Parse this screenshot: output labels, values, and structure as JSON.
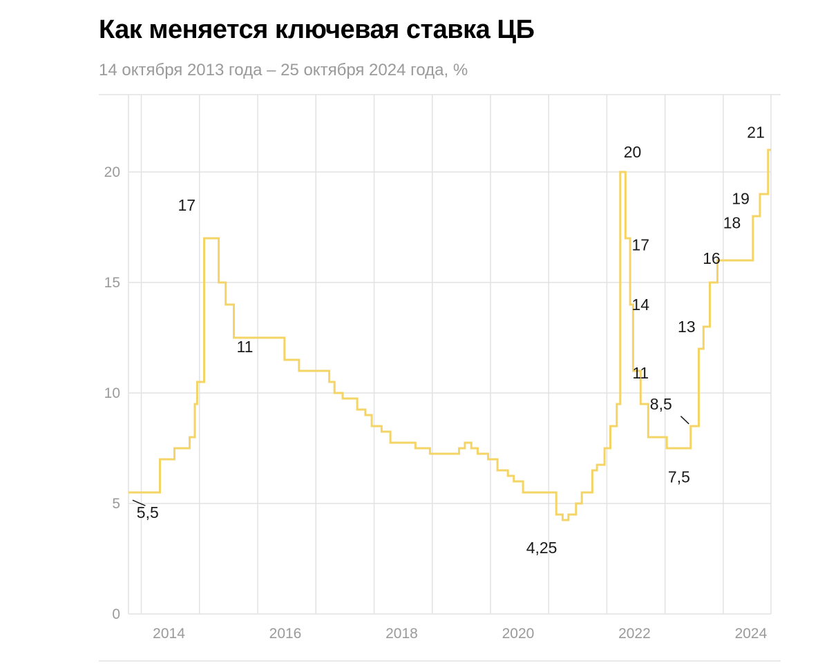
{
  "title": "Как меняется ключевая ставка ЦБ",
  "subtitle": "14 октября 2013 года – 25 октября 2024 года, %",
  "colors": {
    "line": "#F5D466",
    "grid": "#e2e2e2",
    "tick": "#9a9a9a",
    "annotation": "#1a1a1a"
  },
  "chart_data": {
    "type": "line",
    "step": true,
    "title": "Как меняется ключевая ставка ЦБ",
    "subtitle": "14 октября 2013 года – 25 октября 2024 года, %",
    "xlabel": "",
    "ylabel": "",
    "xlim": [
      2013.78,
      2024.82
    ],
    "ylim": [
      0,
      23.5
    ],
    "grid": true,
    "x_ticks": [
      2014,
      2016,
      2018,
      2020,
      2022,
      2024
    ],
    "x_tick_labels": [
      "2014",
      "2016",
      "2018",
      "2020",
      "2022",
      "2024"
    ],
    "y_ticks": [
      0,
      5,
      10,
      15,
      20
    ],
    "y_tick_labels": [
      "0",
      "5",
      "10",
      "15",
      "20"
    ],
    "series": [
      {
        "name": "Ключевая ставка ЦБ",
        "x": [
          2013.78,
          2014.17,
          2014.32,
          2014.57,
          2014.83,
          2014.92,
          2014.96,
          2015.08,
          2015.33,
          2015.45,
          2015.59,
          2016.46,
          2016.71,
          2017.23,
          2017.32,
          2017.46,
          2017.71,
          2017.85,
          2017.96,
          2018.13,
          2018.28,
          2018.71,
          2018.96,
          2019.46,
          2019.56,
          2019.67,
          2019.78,
          2019.96,
          2020.12,
          2020.3,
          2020.4,
          2020.56,
          2021.13,
          2021.24,
          2021.34,
          2021.47,
          2021.57,
          2021.75,
          2021.83,
          2021.96,
          2022.06,
          2022.17,
          2022.23,
          2022.32,
          2022.4,
          2022.45,
          2022.58,
          2022.71,
          2023.03,
          2023.44,
          2023.58,
          2023.66,
          2023.77,
          2023.9,
          2024.51,
          2024.63,
          2024.77,
          2024.82
        ],
        "values": [
          5.5,
          5.5,
          7.0,
          7.5,
          8.0,
          9.5,
          10.5,
          17.0,
          15.0,
          14.0,
          12.5,
          11.5,
          11.0,
          10.5,
          10.0,
          9.75,
          9.25,
          9.0,
          8.5,
          8.25,
          7.75,
          7.5,
          7.25,
          7.5,
          7.75,
          7.5,
          7.25,
          7.0,
          6.5,
          6.25,
          6.0,
          5.5,
          4.5,
          4.25,
          4.5,
          5.0,
          5.5,
          6.5,
          6.75,
          7.5,
          8.5,
          9.5,
          20.0,
          17.0,
          14.0,
          11.0,
          9.5,
          8.0,
          7.5,
          8.5,
          12.0,
          13.0,
          15.0,
          16.0,
          18.0,
          19.0,
          21.0,
          21.0
        ]
      }
    ],
    "annotations": [
      {
        "text": "5,5",
        "x": 2014.11,
        "y": 4.6,
        "leader": [
          [
            2013.85,
            5.15
          ],
          [
            2014.07,
            4.9
          ]
        ]
      },
      {
        "text": "17",
        "x": 2014.78,
        "y": 18.5
      },
      {
        "text": "11",
        "x": 2015.78,
        "y": 12.1
      },
      {
        "text": "4,25",
        "x": 2020.88,
        "y": 3.0
      },
      {
        "text": "20",
        "x": 2022.44,
        "y": 20.9
      },
      {
        "text": "17",
        "x": 2022.58,
        "y": 16.7
      },
      {
        "text": "14",
        "x": 2022.58,
        "y": 14.0
      },
      {
        "text": "11",
        "x": 2022.58,
        "y": 10.9
      },
      {
        "text": "8,5",
        "x": 2022.93,
        "y": 9.5,
        "leader": [
          [
            2023.41,
            8.6
          ],
          [
            2023.27,
            8.95
          ]
        ]
      },
      {
        "text": "7,5",
        "x": 2023.24,
        "y": 6.2
      },
      {
        "text": "13",
        "x": 2023.37,
        "y": 13.0
      },
      {
        "text": "16",
        "x": 2023.8,
        "y": 16.1
      },
      {
        "text": "18",
        "x": 2024.15,
        "y": 17.7
      },
      {
        "text": "19",
        "x": 2024.3,
        "y": 18.8
      },
      {
        "text": "21",
        "x": 2024.56,
        "y": 21.8
      }
    ]
  }
}
